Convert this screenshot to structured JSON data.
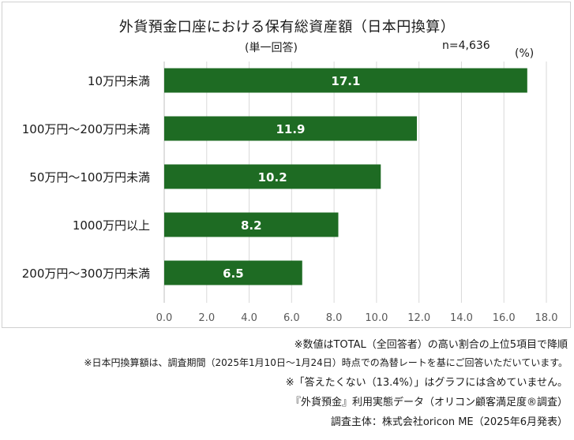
{
  "title": "外貨預金口座における保有総資産額（日本円換算）",
  "subtitle": "(単一回答)",
  "sample": "n=4,636",
  "unit": "(%)",
  "chart_data": {
    "type": "bar",
    "orientation": "horizontal",
    "categories": [
      "10万円未満",
      "100万円～200万円未満",
      "50万円～100万円未満",
      "1000万円以上",
      "200万円～300万円未満"
    ],
    "values": [
      17.1,
      11.9,
      10.2,
      8.2,
      6.5
    ],
    "value_labels": [
      "17.1",
      "11.9",
      "10.2",
      "8.2",
      "6.5"
    ],
    "xlim": [
      0,
      18
    ],
    "xticks": [
      "0.0",
      "2.0",
      "4.0",
      "6.0",
      "8.0",
      "10.0",
      "12.0",
      "14.0",
      "16.0",
      "18.0"
    ],
    "grid": "vertical",
    "bar_color": "#1e6b23",
    "label_color": "#ffffff"
  },
  "notes": [
    "※数値はTOTAL（全回答者）の高い割合の上位5項目で降順",
    "※日本円換算額は、調査期間（2025年1月10日～1月24日）時点での為替レートを基にご回答いただいています。",
    "※「答えたくない（13.4%）」はグラフには含めていません。",
    "『外貨預金』利用実態データ（オリコン顧客満足度®調査）",
    "調査主体：株式会社oricon ME（2025年6月発表）"
  ]
}
